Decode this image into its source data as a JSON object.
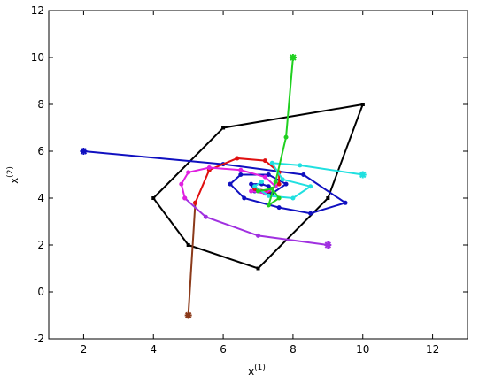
{
  "chart_data": {
    "type": "line",
    "xlabel": [
      "x",
      "(1)"
    ],
    "ylabel": [
      "x",
      "(2)"
    ],
    "xlim": [
      1,
      13
    ],
    "ylim": [
      -2,
      12
    ],
    "xticks": [
      2,
      4,
      6,
      8,
      10,
      12
    ],
    "yticks": [
      -2,
      0,
      2,
      4,
      6,
      8,
      10,
      12
    ],
    "series": [
      {
        "color": "#000000",
        "x": [
          10,
          9,
          7,
          5,
          4,
          6,
          10
        ],
        "values": [
          8,
          4,
          1,
          2,
          4,
          7,
          8
        ],
        "start_marker": false
      },
      {
        "color": "#1010c0",
        "x": [
          2,
          6,
          8.3,
          9.5,
          8.5,
          7.6,
          6.6,
          6.2,
          6.5,
          7.3,
          7.8,
          7.4,
          6.9,
          6.8,
          7.1,
          7.3
        ],
        "values": [
          6,
          5.45,
          5.0,
          3.8,
          3.35,
          3.6,
          4.0,
          4.6,
          5.0,
          5.0,
          4.6,
          4.2,
          4.3,
          4.6,
          4.6,
          4.5
        ],
        "start_marker": true
      },
      {
        "color": "#8b3a1a",
        "x": [
          5,
          5.2
        ],
        "values": [
          -1,
          3.8
        ],
        "start_marker": true
      },
      {
        "color": "#e01010",
        "x": [
          5.2,
          5.6,
          6.4,
          7.2,
          7.6,
          7.6,
          7.3,
          6.9
        ],
        "values": [
          3.8,
          5.2,
          5.7,
          5.6,
          5.1,
          4.6,
          4.3,
          4.4
        ],
        "start_marker": false
      },
      {
        "color": "#a030e0",
        "x": [
          9,
          7,
          5.5,
          4.9
        ],
        "values": [
          2,
          2.4,
          3.2,
          4.0
        ],
        "start_marker": true
      },
      {
        "color": "#e020e0",
        "x": [
          4.9,
          4.8,
          5.0,
          5.6,
          6.5,
          7.2,
          7.5,
          7.2,
          6.8
        ],
        "values": [
          4.0,
          4.6,
          5.1,
          5.3,
          5.2,
          4.9,
          4.5,
          4.2,
          4.3
        ],
        "start_marker": false
      },
      {
        "color": "#20e0e0",
        "x": [
          10,
          8.2,
          7.4,
          7.7,
          8.5,
          8.0,
          7.3,
          6.9,
          7.1
        ],
        "values": [
          5,
          5.4,
          5.5,
          4.8,
          4.5,
          4.0,
          4.1,
          4.5,
          4.7
        ],
        "start_marker": true
      },
      {
        "color": "#20d020",
        "x": [
          8,
          7.8,
          7.5,
          7.3,
          7.6,
          7.4,
          7.0
        ],
        "values": [
          10,
          6.6,
          4.7,
          3.7,
          4.0,
          4.4,
          4.3
        ],
        "start_marker": true
      }
    ]
  }
}
